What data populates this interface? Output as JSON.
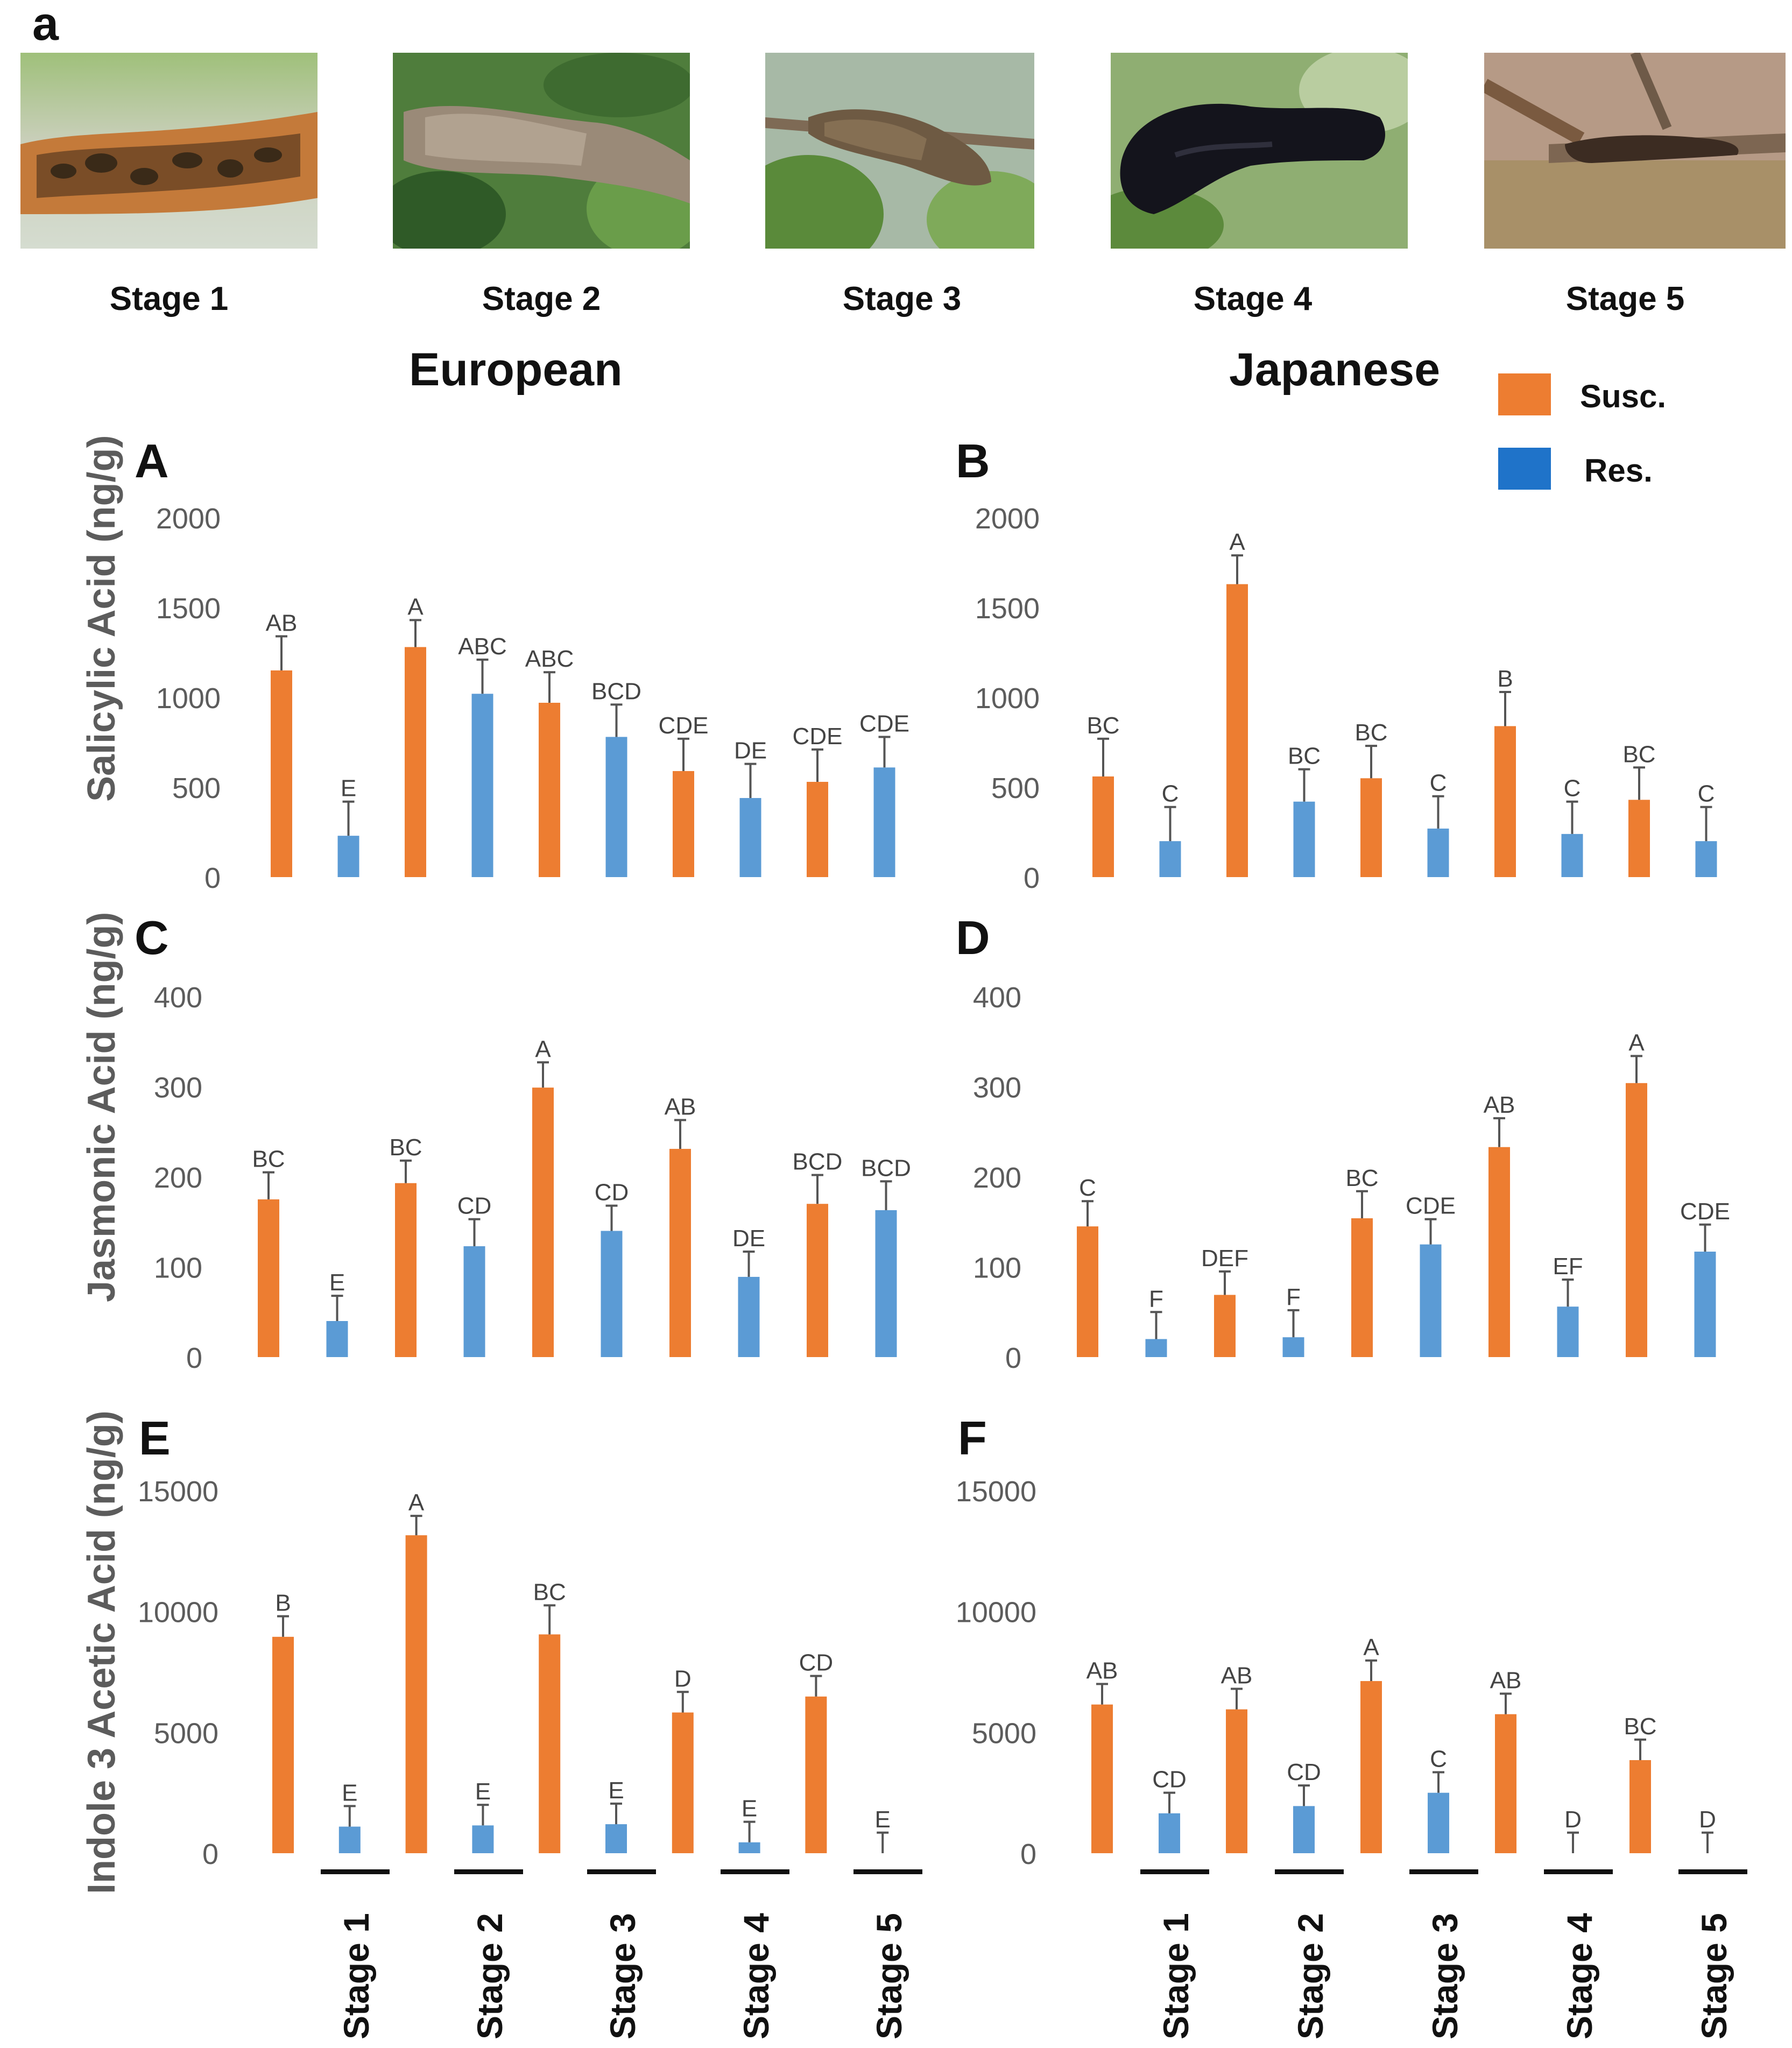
{
  "figure_label": "a",
  "stages": [
    "Stage 1",
    "Stage 2",
    "Stage 3",
    "Stage 4",
    "Stage 5"
  ],
  "groups": {
    "left": "European",
    "right": "Japanese"
  },
  "legend": [
    {
      "label": "Susc.",
      "color": "#ed7d31"
    },
    {
      "label": "Res.",
      "color": "#5b9bd5"
    }
  ],
  "colors": {
    "susc": "#ed7d31",
    "res": "#5b9bd5",
    "axis_text": "#5c5c5c"
  },
  "ylabels": {
    "row1": "Salicylic Acid (ng/g)",
    "row2": "Jasmonic Acid (ng/g)",
    "row3": "Indole 3 Acetic Acid (ng/g)"
  },
  "chart_data": [
    {
      "panel": "A",
      "type": "bar",
      "title": "European",
      "ylabel": "Salicylic Acid (ng/g)",
      "ylim": [
        0,
        2000
      ],
      "yticks": [
        0,
        500,
        1000,
        1500,
        2000
      ],
      "categories": [
        "Stage 1",
        "Stage 2",
        "Stage 3",
        "Stage 4",
        "Stage 5"
      ],
      "series": [
        {
          "name": "Susc.",
          "values": [
            1150,
            1280,
            970,
            590,
            530
          ],
          "errors": [
            190,
            150,
            170,
            180,
            180
          ],
          "labels": [
            "AB",
            "A",
            "ABC",
            "CDE",
            "CDE"
          ]
        },
        {
          "name": "Res.",
          "values": [
            230,
            1020,
            780,
            440,
            610
          ],
          "errors": [
            190,
            190,
            180,
            190,
            170
          ],
          "labels": [
            "E",
            "ABC",
            "BCD",
            "DE",
            "CDE"
          ]
        }
      ]
    },
    {
      "panel": "B",
      "type": "bar",
      "title": "Japanese",
      "ylabel": "Salicylic Acid (ng/g)",
      "ylim": [
        0,
        2000
      ],
      "yticks": [
        0,
        500,
        1000,
        1500,
        2000
      ],
      "categories": [
        "Stage 1",
        "Stage 2",
        "Stage 3",
        "Stage 4",
        "Stage 5"
      ],
      "series": [
        {
          "name": "Susc.",
          "values": [
            560,
            1630,
            550,
            840,
            430
          ],
          "errors": [
            210,
            160,
            180,
            190,
            180
          ],
          "labels": [
            "BC",
            "A",
            "BC",
            "B",
            "BC"
          ]
        },
        {
          "name": "Res.",
          "values": [
            200,
            420,
            270,
            240,
            200
          ],
          "errors": [
            190,
            180,
            180,
            180,
            190
          ],
          "labels": [
            "C",
            "BC",
            "C",
            "C",
            "C"
          ]
        }
      ]
    },
    {
      "panel": "C",
      "type": "bar",
      "title": "European",
      "ylabel": "Jasmonic Acid (ng/g)",
      "ylim": [
        0,
        400
      ],
      "yticks": [
        0,
        100,
        200,
        300,
        400
      ],
      "categories": [
        "Stage 1",
        "Stage 2",
        "Stage 3",
        "Stage 4",
        "Stage 5"
      ],
      "series": [
        {
          "name": "Susc.",
          "values": [
            175,
            193,
            299,
            231,
            170
          ],
          "errors": [
            30,
            25,
            28,
            32,
            32
          ],
          "labels": [
            "BC",
            "BC",
            "A",
            "AB",
            "BCD"
          ]
        },
        {
          "name": "Res.",
          "values": [
            40,
            123,
            140,
            89,
            163
          ],
          "errors": [
            28,
            30,
            28,
            28,
            32
          ],
          "labels": [
            "E",
            "CD",
            "CD",
            "DE",
            "BCD"
          ]
        }
      ]
    },
    {
      "panel": "D",
      "type": "bar",
      "title": "Japanese",
      "ylabel": "Jasmonic Acid (ng/g)",
      "ylim": [
        0,
        400
      ],
      "yticks": [
        0,
        100,
        200,
        300,
        400
      ],
      "categories": [
        "Stage 1",
        "Stage 2",
        "Stage 3",
        "Stage 4",
        "Stage 5"
      ],
      "series": [
        {
          "name": "Susc.",
          "values": [
            145,
            69,
            154,
            233,
            304
          ],
          "errors": [
            28,
            26,
            30,
            32,
            30
          ],
          "labels": [
            "C",
            "DEF",
            "BC",
            "AB",
            "A"
          ]
        },
        {
          "name": "Res.",
          "values": [
            20,
            22,
            125,
            56,
            117
          ],
          "errors": [
            30,
            30,
            28,
            30,
            30
          ],
          "labels": [
            "F",
            "F",
            "CDE",
            "EF",
            "CDE"
          ]
        }
      ]
    },
    {
      "panel": "E",
      "type": "bar",
      "title": "European",
      "ylabel": "Indole 3 Acetic Acid (ng/g)",
      "ylim": [
        0,
        15000
      ],
      "yticks": [
        0,
        5000,
        10000,
        15000
      ],
      "categories": [
        "Stage 1",
        "Stage 2",
        "Stage 3",
        "Stage 4",
        "Stage 5"
      ],
      "series": [
        {
          "name": "Susc.",
          "values": [
            8950,
            13150,
            9050,
            5820,
            6480
          ],
          "errors": [
            850,
            800,
            1200,
            850,
            850
          ],
          "labels": [
            "B",
            "A",
            "BC",
            "D",
            "CD"
          ]
        },
        {
          "name": "Res.",
          "values": [
            1100,
            1150,
            1200,
            450,
            0
          ],
          "errors": [
            850,
            850,
            850,
            850,
            850
          ],
          "labels": [
            "E",
            "E",
            "E",
            "E",
            "E"
          ]
        }
      ]
    },
    {
      "panel": "F",
      "type": "bar",
      "title": "Japanese",
      "ylabel": "Indole 3 Acetic Acid (ng/g)",
      "ylim": [
        0,
        15000
      ],
      "yticks": [
        0,
        5000,
        10000,
        15000
      ],
      "categories": [
        "Stage 1",
        "Stage 2",
        "Stage 3",
        "Stage 4",
        "Stage 5"
      ],
      "series": [
        {
          "name": "Susc.",
          "values": [
            6150,
            5950,
            7120,
            5750,
            3850
          ],
          "errors": [
            850,
            850,
            850,
            850,
            850
          ],
          "labels": [
            "AB",
            "AB",
            "A",
            "AB",
            "BC"
          ]
        },
        {
          "name": "Res.",
          "values": [
            1650,
            1950,
            2500,
            0,
            0
          ],
          "errors": [
            850,
            850,
            850,
            850,
            850
          ],
          "labels": [
            "CD",
            "CD",
            "C",
            "D",
            "D"
          ]
        }
      ]
    }
  ]
}
